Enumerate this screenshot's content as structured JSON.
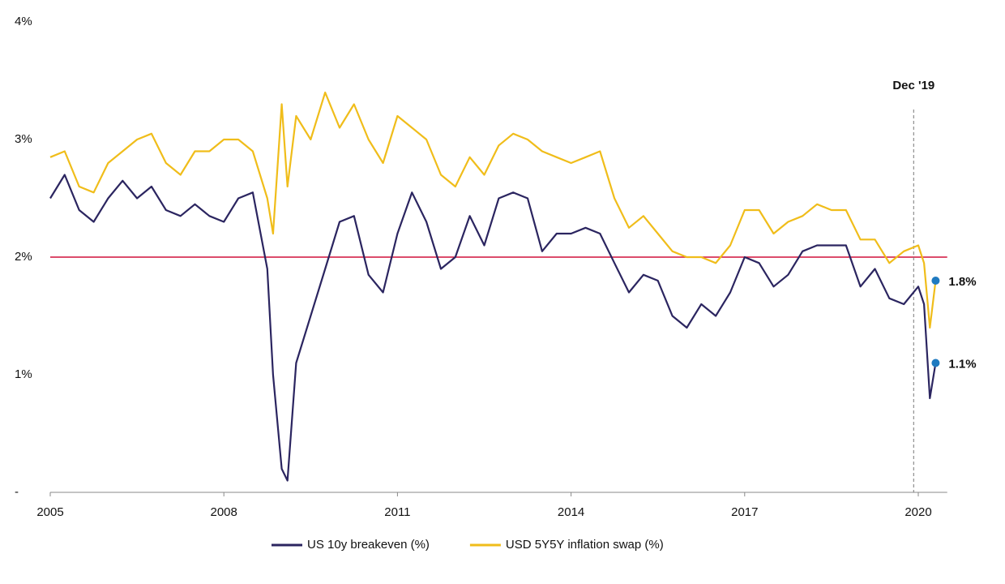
{
  "chart_data": {
    "type": "line",
    "x": [
      2005.0,
      2005.25,
      2005.5,
      2005.75,
      2006.0,
      2006.25,
      2006.5,
      2006.75,
      2007.0,
      2007.25,
      2007.5,
      2007.75,
      2008.0,
      2008.25,
      2008.5,
      2008.75,
      2008.85,
      2009.0,
      2009.1,
      2009.25,
      2009.5,
      2009.75,
      2010.0,
      2010.25,
      2010.5,
      2010.75,
      2011.0,
      2011.25,
      2011.5,
      2011.75,
      2012.0,
      2012.25,
      2012.5,
      2012.75,
      2013.0,
      2013.25,
      2013.5,
      2013.75,
      2014.0,
      2014.25,
      2014.5,
      2014.75,
      2015.0,
      2015.25,
      2015.5,
      2015.75,
      2016.0,
      2016.25,
      2016.5,
      2016.75,
      2017.0,
      2017.25,
      2017.5,
      2017.75,
      2018.0,
      2018.25,
      2018.5,
      2018.75,
      2019.0,
      2019.25,
      2019.5,
      2019.75,
      2020.0,
      2020.1,
      2020.2,
      2020.3
    ],
    "series": [
      {
        "name": "US 10y breakeven (%)",
        "color": "#2b2560",
        "values": [
          2.5,
          2.7,
          2.4,
          2.3,
          2.5,
          2.65,
          2.5,
          2.6,
          2.4,
          2.35,
          2.45,
          2.35,
          2.3,
          2.5,
          2.55,
          1.9,
          1.0,
          0.2,
          0.1,
          1.1,
          1.5,
          1.9,
          2.3,
          2.35,
          1.85,
          1.7,
          2.2,
          2.55,
          2.3,
          1.9,
          2.0,
          2.35,
          2.1,
          2.5,
          2.55,
          2.5,
          2.05,
          2.2,
          2.2,
          2.25,
          2.2,
          1.95,
          1.7,
          1.85,
          1.8,
          1.5,
          1.4,
          1.6,
          1.5,
          1.7,
          2.0,
          1.95,
          1.75,
          1.85,
          2.05,
          2.1,
          2.1,
          2.1,
          1.75,
          1.9,
          1.65,
          1.6,
          1.75,
          1.6,
          0.8,
          1.1
        ]
      },
      {
        "name": "USD 5Y5Y inflation swap (%)",
        "color": "#f0bd1a",
        "values": [
          2.85,
          2.9,
          2.6,
          2.55,
          2.8,
          2.9,
          3.0,
          3.05,
          2.8,
          2.7,
          2.9,
          2.9,
          3.0,
          3.0,
          2.9,
          2.5,
          2.2,
          3.3,
          2.6,
          3.2,
          3.0,
          3.4,
          3.1,
          3.3,
          3.0,
          2.8,
          3.2,
          3.1,
          3.0,
          2.7,
          2.6,
          2.85,
          2.7,
          2.95,
          3.05,
          3.0,
          2.9,
          2.85,
          2.8,
          2.85,
          2.9,
          2.5,
          2.25,
          2.35,
          2.2,
          2.05,
          2.0,
          2.0,
          1.95,
          2.1,
          2.4,
          2.4,
          2.2,
          2.3,
          2.35,
          2.45,
          2.4,
          2.4,
          2.15,
          2.15,
          1.95,
          2.05,
          2.1,
          1.95,
          1.4,
          1.8
        ]
      }
    ],
    "xlim": [
      2005,
      2020.5
    ],
    "xticks": [
      2005,
      2008,
      2011,
      2014,
      2017,
      2020
    ],
    "ylim": [
      0,
      4
    ],
    "yticks": [
      {
        "value": 0,
        "label": "-"
      },
      {
        "value": 1,
        "label": "1%"
      },
      {
        "value": 2,
        "label": "2%"
      },
      {
        "value": 3,
        "label": "3%"
      },
      {
        "value": 4,
        "label": "4%"
      }
    ],
    "reference_line": {
      "y": 2,
      "color": "#d0103a"
    },
    "vline": {
      "x": 2019.92,
      "label": "Dec '19"
    },
    "end_labels": [
      {
        "x": 2020.3,
        "y": 1.8,
        "label": "1.8%"
      },
      {
        "x": 2020.3,
        "y": 1.1,
        "label": "1.1%"
      }
    ],
    "marker_color": "#1f7ac0",
    "legend": "bottom"
  }
}
